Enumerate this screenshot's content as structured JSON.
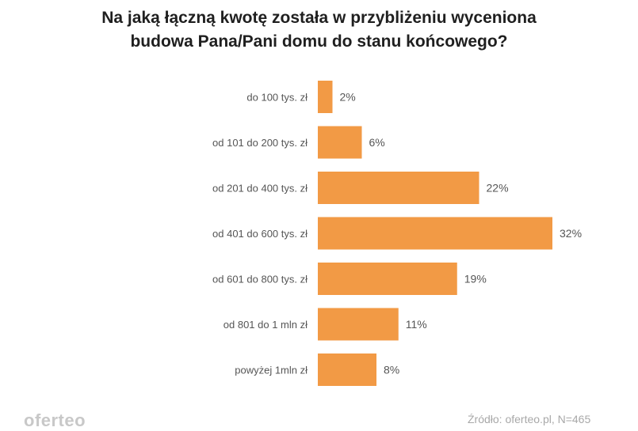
{
  "chart_data": {
    "type": "bar",
    "orientation": "horizontal",
    "title_lines": [
      "Na jaką łączną kwotę została w przybliżeniu wyceniona",
      "budowa Pana/Pani domu do stanu końcowego?"
    ],
    "categories": [
      "do 100 tys. zł",
      "od 101 do 200 tys. zł",
      "od 201 do 400 tys. zł",
      "od 401 do 600 tys. zł",
      "od 601 do 800 tys. zł",
      "od 801 do 1 mln zł",
      "powyżej 1mln zł"
    ],
    "values": [
      2,
      6,
      22,
      32,
      19,
      11,
      8
    ],
    "value_labels": [
      "2%",
      "6%",
      "22%",
      "32%",
      "19%",
      "11%",
      "8%"
    ],
    "unit": "%",
    "xlim": [
      0,
      32
    ],
    "grid": false,
    "legend": "none",
    "bar_color": "#f29a45"
  },
  "footer": {
    "logo": "oferteo",
    "source": "Źródło: oferteo.pl, N=465"
  },
  "colors": {
    "label_text": "#555555",
    "title_text": "#1f1f1f"
  }
}
